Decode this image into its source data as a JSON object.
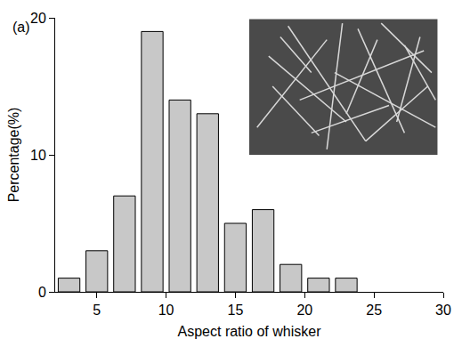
{
  "chart_data": {
    "type": "histogram",
    "panel_label": "(a)",
    "x_label": "Aspect ratio of whisker",
    "y_label": "Percentage(%)",
    "bins": [
      2,
      4,
      6,
      8,
      10,
      12,
      14,
      16,
      18,
      20,
      22,
      24
    ],
    "values": [
      1,
      3,
      7,
      19,
      14,
      13,
      5,
      6,
      2,
      1,
      1
    ],
    "color": "#c8c8c8",
    "xlim": [
      2,
      30
    ],
    "xticks": [
      5,
      10,
      15,
      20,
      25,
      30
    ],
    "ylim": [
      0,
      20
    ],
    "yticks": [
      0,
      10,
      20
    ],
    "grid": false
  }
}
